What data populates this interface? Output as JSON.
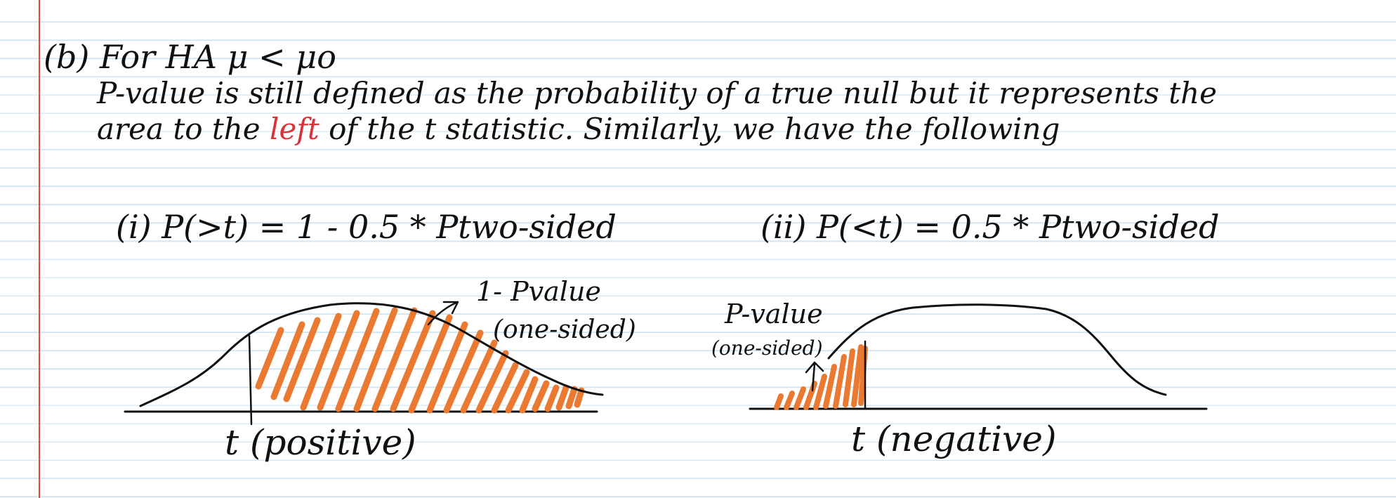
{
  "note": {
    "heading": "(b) For HA μ < μo",
    "line1": "P-value is still defined as the probability of a true null but it represents the",
    "line2_before": "area to the ",
    "line2_highlight": "left",
    "line2_after": " of the t statistic. Similarly, we have the following",
    "highlight_color": "#d6333a"
  },
  "figure_left": {
    "formula": "(i) P(>t) = 1 - 0.5 * Ptwo-sided",
    "area_label": "1- Pvalue",
    "area_sublabel": "(one-sided)",
    "axis_label": "t (positive)"
  },
  "figure_right": {
    "formula": "(ii) P(<t) = 0.5 * Ptwo-sided",
    "area_label": "P-value",
    "area_sublabel": "(one-sided)",
    "axis_label": "t (negative)"
  },
  "colors": {
    "ink": "#111111",
    "hatch": "#ea7a32",
    "ruled_line": "#cfe4f0",
    "margin_line": "#e4423c"
  }
}
